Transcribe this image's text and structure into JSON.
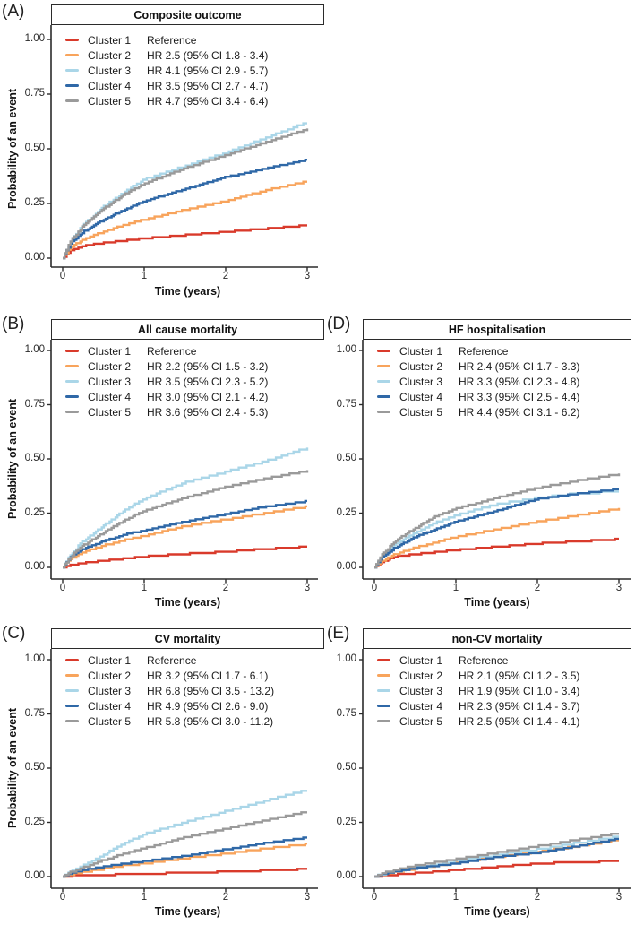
{
  "figure": {
    "ylabel": "Probability of an event",
    "xlabel": "Time (years)",
    "ytick_labels": [
      "1.00",
      "0.75",
      "0.50",
      "0.25",
      "0.00"
    ],
    "xtick_labels": [
      "0",
      "1",
      "2",
      "3"
    ]
  },
  "colors": {
    "cluster1": "#d93a2b",
    "cluster2": "#f8a45c",
    "cluster3": "#aad6e8",
    "cluster4": "#2f68a7",
    "cluster5": "#9a9a9a",
    "axis": "#2b2b2b"
  },
  "chart_data": [
    {
      "panel_label": "(A)",
      "type": "line",
      "title": "Composite outcome",
      "xlabel": "Time (years)",
      "ylabel": "Probability of an event",
      "xlim": [
        0,
        3
      ],
      "ylim": [
        0,
        1
      ],
      "xticks": [
        0,
        1,
        2,
        3
      ],
      "yticks": [
        0,
        0.25,
        0.5,
        0.75,
        1
      ],
      "x": [
        0,
        0.1,
        0.25,
        0.5,
        0.75,
        1,
        1.5,
        2,
        2.5,
        3
      ],
      "legend": [
        {
          "name": "Cluster 1",
          "hr": "Reference",
          "color_key": "cluster1"
        },
        {
          "name": "Cluster 2",
          "hr": "HR 2.5 (95% CI 1.8 - 3.4)",
          "color_key": "cluster2"
        },
        {
          "name": "Cluster 3",
          "hr": "HR 4.1 (95% CI 2.9 - 5.7)",
          "color_key": "cluster3"
        },
        {
          "name": "Cluster 4",
          "hr": "HR 3.5 (95% CI 2.7 - 4.7)",
          "color_key": "cluster4"
        },
        {
          "name": "Cluster 5",
          "hr": "HR 4.7 (95% CI 3.4 - 6.4)",
          "color_key": "cluster5"
        }
      ],
      "series": [
        {
          "name": "Cluster 1",
          "color_key": "cluster1",
          "values": [
            0,
            0.035,
            0.055,
            0.07,
            0.08,
            0.09,
            0.105,
            0.12,
            0.135,
            0.15
          ]
        },
        {
          "name": "Cluster 2",
          "color_key": "cluster2",
          "values": [
            0,
            0.05,
            0.085,
            0.12,
            0.15,
            0.175,
            0.22,
            0.26,
            0.31,
            0.35
          ]
        },
        {
          "name": "Cluster 3",
          "color_key": "cluster3",
          "values": [
            0,
            0.08,
            0.15,
            0.235,
            0.3,
            0.36,
            0.42,
            0.48,
            0.55,
            0.62
          ]
        },
        {
          "name": "Cluster 4",
          "color_key": "cluster4",
          "values": [
            0,
            0.07,
            0.12,
            0.175,
            0.22,
            0.26,
            0.315,
            0.37,
            0.41,
            0.45
          ]
        },
        {
          "name": "Cluster 5",
          "color_key": "cluster5",
          "values": [
            0,
            0.08,
            0.145,
            0.225,
            0.29,
            0.34,
            0.41,
            0.47,
            0.53,
            0.59
          ]
        }
      ]
    },
    {
      "panel_label": "(B)",
      "type": "line",
      "title": "All cause mortality",
      "xlabel": "Time (years)",
      "ylabel": "Probability of an event",
      "xlim": [
        0,
        3
      ],
      "ylim": [
        0,
        1
      ],
      "xticks": [
        0,
        1,
        2,
        3
      ],
      "yticks": [
        0,
        0.25,
        0.5,
        0.75,
        1
      ],
      "x": [
        0,
        0.1,
        0.25,
        0.5,
        0.75,
        1,
        1.5,
        2,
        2.5,
        3
      ],
      "legend": [
        {
          "name": "Cluster 1",
          "hr": "Reference",
          "color_key": "cluster1"
        },
        {
          "name": "Cluster 2",
          "hr": "HR 2.2 (95% CI 1.5 - 3.2)",
          "color_key": "cluster2"
        },
        {
          "name": "Cluster 3",
          "hr": "HR 3.5 (95% CI 2.3 - 5.2)",
          "color_key": "cluster3"
        },
        {
          "name": "Cluster 4",
          "hr": "HR 3.0 (95% CI 2.1 - 4.2)",
          "color_key": "cluster4"
        },
        {
          "name": "Cluster 5",
          "hr": "HR 3.6 (95% CI 2.4 - 5.3)",
          "color_key": "cluster5"
        }
      ],
      "series": [
        {
          "name": "Cluster 1",
          "color_key": "cluster1",
          "values": [
            0,
            0.01,
            0.02,
            0.03,
            0.04,
            0.05,
            0.062,
            0.072,
            0.085,
            0.095
          ]
        },
        {
          "name": "Cluster 2",
          "color_key": "cluster2",
          "values": [
            0,
            0.04,
            0.07,
            0.1,
            0.125,
            0.145,
            0.19,
            0.22,
            0.25,
            0.28
          ]
        },
        {
          "name": "Cluster 3",
          "color_key": "cluster3",
          "values": [
            0,
            0.06,
            0.12,
            0.19,
            0.26,
            0.315,
            0.39,
            0.44,
            0.49,
            0.55
          ]
        },
        {
          "name": "Cluster 4",
          "color_key": "cluster4",
          "values": [
            0,
            0.05,
            0.085,
            0.12,
            0.15,
            0.17,
            0.21,
            0.245,
            0.28,
            0.305
          ]
        },
        {
          "name": "Cluster 5",
          "color_key": "cluster5",
          "values": [
            0,
            0.05,
            0.1,
            0.16,
            0.215,
            0.26,
            0.32,
            0.37,
            0.41,
            0.445
          ]
        }
      ]
    },
    {
      "panel_label": "(C)",
      "type": "line",
      "title": "CV mortality",
      "xlabel": "Time (years)",
      "ylabel": "Probability of an event",
      "xlim": [
        0,
        3
      ],
      "ylim": [
        0,
        1
      ],
      "xticks": [
        0,
        1,
        2,
        3
      ],
      "yticks": [
        0,
        0.25,
        0.5,
        0.75,
        1
      ],
      "x": [
        0,
        0.1,
        0.25,
        0.5,
        0.75,
        1,
        1.5,
        2,
        2.5,
        3
      ],
      "legend": [
        {
          "name": "Cluster 1",
          "hr": "Reference",
          "color_key": "cluster1"
        },
        {
          "name": "Cluster 2",
          "hr": "HR 3.2 (95% CI 1.7 - 6.1)",
          "color_key": "cluster2"
        },
        {
          "name": "Cluster 3",
          "hr": "HR 6.8 (95% CI 3.5 - 13.2)",
          "color_key": "cluster3"
        },
        {
          "name": "Cluster 4",
          "hr": "HR 4.9 (95% CI 2.6 - 9.0)",
          "color_key": "cluster4"
        },
        {
          "name": "Cluster 5",
          "hr": "HR 5.8 (95% CI 3.0 - 11.2)",
          "color_key": "cluster5"
        }
      ],
      "series": [
        {
          "name": "Cluster 1",
          "color_key": "cluster1",
          "values": [
            0,
            0.003,
            0.006,
            0.008,
            0.01,
            0.012,
            0.018,
            0.022,
            0.028,
            0.035
          ]
        },
        {
          "name": "Cluster 2",
          "color_key": "cluster2",
          "values": [
            0,
            0.01,
            0.02,
            0.035,
            0.05,
            0.06,
            0.085,
            0.105,
            0.13,
            0.15
          ]
        },
        {
          "name": "Cluster 3",
          "color_key": "cluster3",
          "values": [
            0,
            0.02,
            0.05,
            0.1,
            0.15,
            0.195,
            0.25,
            0.3,
            0.35,
            0.4
          ]
        },
        {
          "name": "Cluster 4",
          "color_key": "cluster4",
          "values": [
            0,
            0.015,
            0.03,
            0.045,
            0.06,
            0.07,
            0.095,
            0.125,
            0.155,
            0.18
          ]
        },
        {
          "name": "Cluster 5",
          "color_key": "cluster5",
          "values": [
            0,
            0.02,
            0.04,
            0.075,
            0.105,
            0.13,
            0.18,
            0.22,
            0.26,
            0.3
          ]
        }
      ]
    },
    {
      "panel_label": "(D)",
      "type": "line",
      "title": "HF hospitalisation",
      "xlabel": "Time (years)",
      "ylabel": "",
      "xlim": [
        0,
        3
      ],
      "ylim": [
        0,
        1
      ],
      "xticks": [
        0,
        1,
        2,
        3
      ],
      "yticks": [
        0,
        0.25,
        0.5,
        0.75,
        1
      ],
      "x": [
        0,
        0.1,
        0.25,
        0.5,
        0.75,
        1,
        1.5,
        2,
        2.5,
        3
      ],
      "legend": [
        {
          "name": "Cluster 1",
          "hr": "Reference",
          "color_key": "cluster1"
        },
        {
          "name": "Cluster 2",
          "hr": "HR 2.4 (95% CI 1.7 - 3.3)",
          "color_key": "cluster2"
        },
        {
          "name": "Cluster 3",
          "hr": "HR 3.3 (95% CI 2.3 - 4.8)",
          "color_key": "cluster3"
        },
        {
          "name": "Cluster 4",
          "hr": "HR 3.3 (95% CI 2.5 - 4.4)",
          "color_key": "cluster4"
        },
        {
          "name": "Cluster 5",
          "hr": "HR 4.4 (95% CI 3.1 - 6.2)",
          "color_key": "cluster5"
        }
      ],
      "series": [
        {
          "name": "Cluster 1",
          "color_key": "cluster1",
          "values": [
            0,
            0.025,
            0.05,
            0.06,
            0.07,
            0.08,
            0.095,
            0.11,
            0.12,
            0.13
          ]
        },
        {
          "name": "Cluster 2",
          "color_key": "cluster2",
          "values": [
            0,
            0.03,
            0.06,
            0.09,
            0.115,
            0.14,
            0.175,
            0.21,
            0.24,
            0.27
          ]
        },
        {
          "name": "Cluster 3",
          "color_key": "cluster3",
          "values": [
            0,
            0.055,
            0.105,
            0.16,
            0.205,
            0.24,
            0.29,
            0.32,
            0.34,
            0.35
          ]
        },
        {
          "name": "Cluster 4",
          "color_key": "cluster4",
          "values": [
            0,
            0.05,
            0.09,
            0.14,
            0.175,
            0.21,
            0.26,
            0.315,
            0.34,
            0.36
          ]
        },
        {
          "name": "Cluster 5",
          "color_key": "cluster5",
          "values": [
            0,
            0.06,
            0.12,
            0.18,
            0.235,
            0.27,
            0.32,
            0.365,
            0.4,
            0.43
          ]
        }
      ]
    },
    {
      "panel_label": "(E)",
      "type": "line",
      "title": "non-CV mortality",
      "xlabel": "Time (years)",
      "ylabel": "",
      "xlim": [
        0,
        3
      ],
      "ylim": [
        0,
        1
      ],
      "xticks": [
        0,
        1,
        2,
        3
      ],
      "yticks": [
        0,
        0.25,
        0.5,
        0.75,
        1
      ],
      "x": [
        0,
        0.1,
        0.25,
        0.5,
        0.75,
        1,
        1.5,
        2,
        2.5,
        3
      ],
      "legend": [
        {
          "name": "Cluster 1",
          "hr": "Reference",
          "color_key": "cluster1"
        },
        {
          "name": "Cluster 2",
          "hr": "HR 2.1 (95% CI 1.2 - 3.5)",
          "color_key": "cluster2"
        },
        {
          "name": "Cluster 3",
          "hr": "HR 1.9 (95% CI 1.0 - 3.4)",
          "color_key": "cluster3"
        },
        {
          "name": "Cluster 4",
          "hr": "HR 2.3 (95% CI 1.4 - 3.7)",
          "color_key": "cluster4"
        },
        {
          "name": "Cluster 5",
          "hr": "HR 2.5 (95% CI 1.4 - 4.1)",
          "color_key": "cluster5"
        }
      ],
      "series": [
        {
          "name": "Cluster 1",
          "color_key": "cluster1",
          "values": [
            0,
            0.004,
            0.008,
            0.015,
            0.022,
            0.03,
            0.045,
            0.06,
            0.068,
            0.07
          ]
        },
        {
          "name": "Cluster 2",
          "color_key": "cluster2",
          "values": [
            0,
            0.01,
            0.02,
            0.035,
            0.05,
            0.065,
            0.09,
            0.115,
            0.14,
            0.17
          ]
        },
        {
          "name": "Cluster 3",
          "color_key": "cluster3",
          "values": [
            0,
            0.012,
            0.025,
            0.04,
            0.055,
            0.07,
            0.1,
            0.125,
            0.155,
            0.185
          ]
        },
        {
          "name": "Cluster 4",
          "color_key": "cluster4",
          "values": [
            0,
            0.01,
            0.022,
            0.038,
            0.05,
            0.06,
            0.09,
            0.11,
            0.14,
            0.175
          ]
        },
        {
          "name": "Cluster 5",
          "color_key": "cluster5",
          "values": [
            0,
            0.015,
            0.03,
            0.05,
            0.065,
            0.08,
            0.11,
            0.14,
            0.17,
            0.2
          ]
        }
      ]
    }
  ]
}
